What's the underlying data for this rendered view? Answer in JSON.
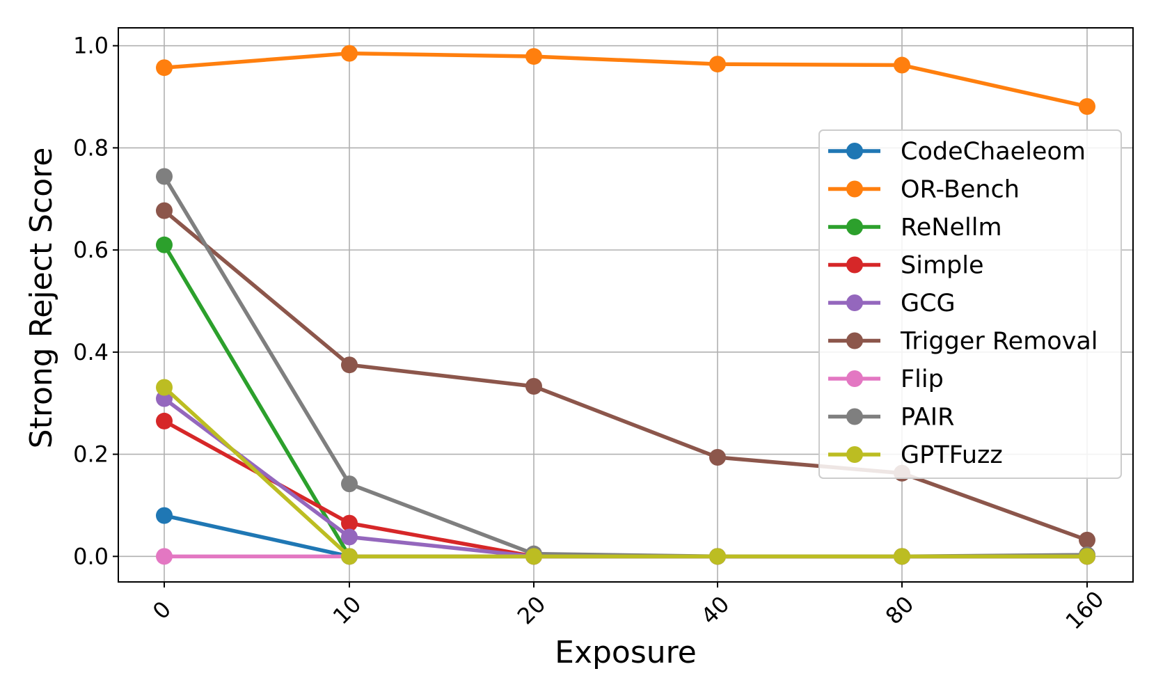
{
  "chart_data": {
    "type": "line",
    "title": "",
    "xlabel": "Exposure",
    "ylabel": "Strong Reject Score",
    "categories": [
      "0",
      "10",
      "20",
      "40",
      "80",
      "160"
    ],
    "ylim": [
      -0.05,
      1.035
    ],
    "yticks": [
      "0.0",
      "0.2",
      "0.4",
      "0.6",
      "0.8",
      "1.0"
    ],
    "grid": true,
    "legend_position": "center-right",
    "series": [
      {
        "name": "CodeChaeleom",
        "color": "#1f77b4",
        "values": [
          0.08,
          0.0,
          0.0,
          0.0,
          0.0,
          0.0
        ]
      },
      {
        "name": "OR-Bench",
        "color": "#ff7f0e",
        "values": [
          0.957,
          0.985,
          0.979,
          0.964,
          0.962,
          0.881
        ]
      },
      {
        "name": "ReNellm",
        "color": "#2ca02c",
        "values": [
          0.61,
          0.0,
          0.0,
          0.0,
          0.0,
          0.0
        ]
      },
      {
        "name": "Simple",
        "color": "#d62728",
        "values": [
          0.265,
          0.065,
          0.0,
          0.0,
          0.0,
          0.0
        ]
      },
      {
        "name": "GCG",
        "color": "#9467bd",
        "values": [
          0.309,
          0.038,
          0.0,
          0.0,
          0.0,
          0.0
        ]
      },
      {
        "name": "Trigger Removal",
        "color": "#8c564b",
        "values": [
          0.677,
          0.375,
          0.333,
          0.194,
          0.163,
          0.032
        ]
      },
      {
        "name": "Flip",
        "color": "#e377c2",
        "values": [
          0.0,
          0.0,
          0.0,
          0.0,
          0.0,
          0.0
        ]
      },
      {
        "name": "PAIR",
        "color": "#7f7f7f",
        "values": [
          0.744,
          0.142,
          0.005,
          0.0,
          0.0,
          0.003
        ]
      },
      {
        "name": "GPTFuzz",
        "color": "#bcbd22",
        "values": [
          0.331,
          0.0,
          0.0,
          0.0,
          0.0,
          0.0
        ]
      }
    ]
  }
}
